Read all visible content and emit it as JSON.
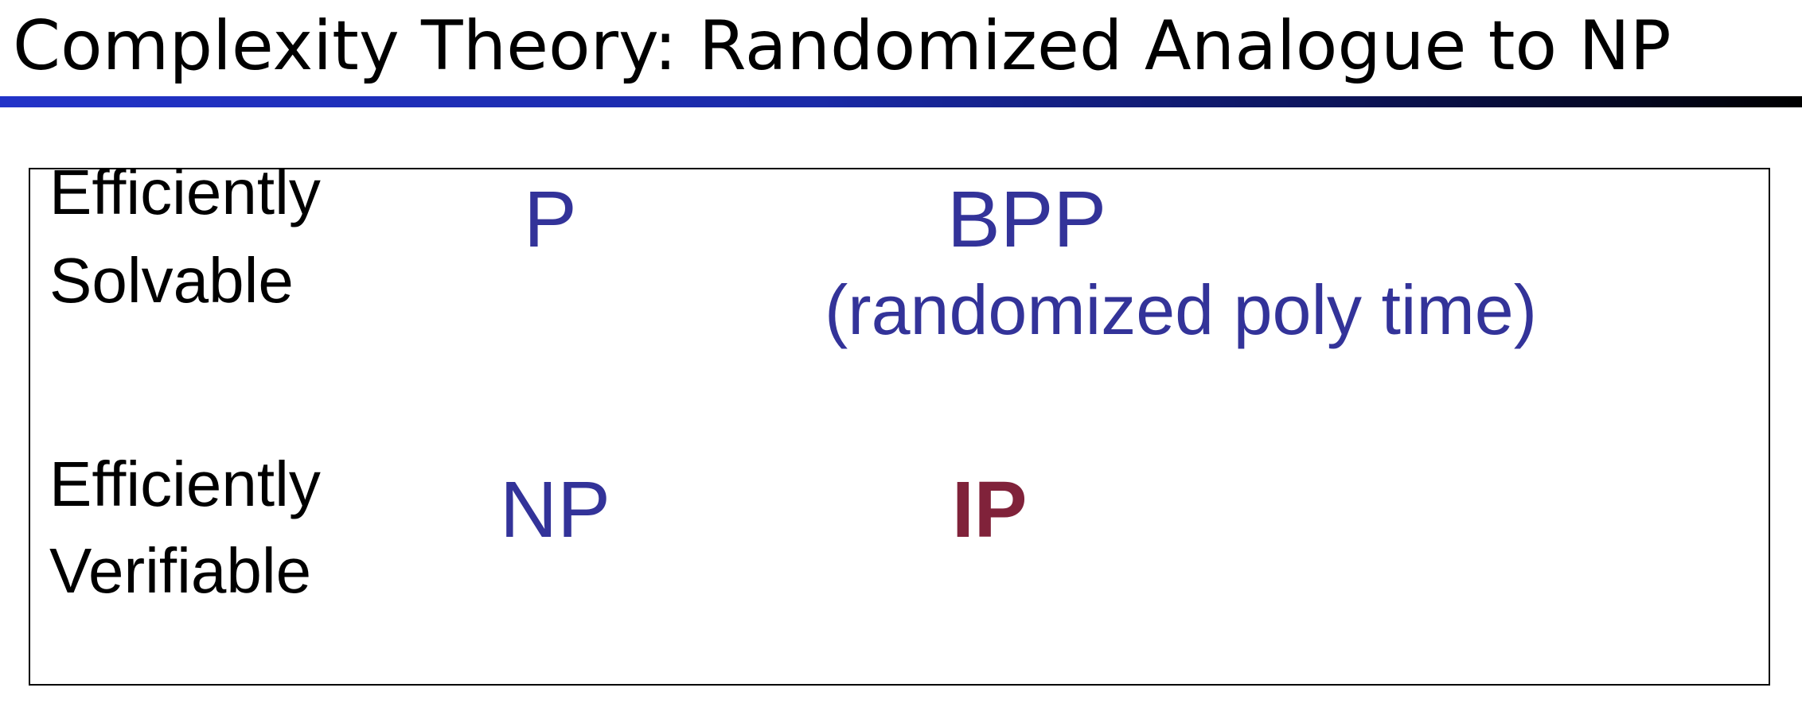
{
  "title": "Complexity Theory: Randomized Analogue to NP",
  "colors": {
    "title_text": "#000000",
    "rule_start": "#2233c8",
    "rule_end": "#000000",
    "class_blue": "#333399",
    "class_ip": "#80223a",
    "label_text": "#000000"
  },
  "rows": {
    "solvable": {
      "label_line1": "Efficiently",
      "label_line2": "Solvable",
      "deterministic_class": "P",
      "randomized_class": "BPP",
      "randomized_note": "(randomized poly time)"
    },
    "verifiable": {
      "label_line1": "Efficiently",
      "label_line2": "Verifiable",
      "deterministic_class": "NP",
      "randomized_class": "IP"
    }
  }
}
